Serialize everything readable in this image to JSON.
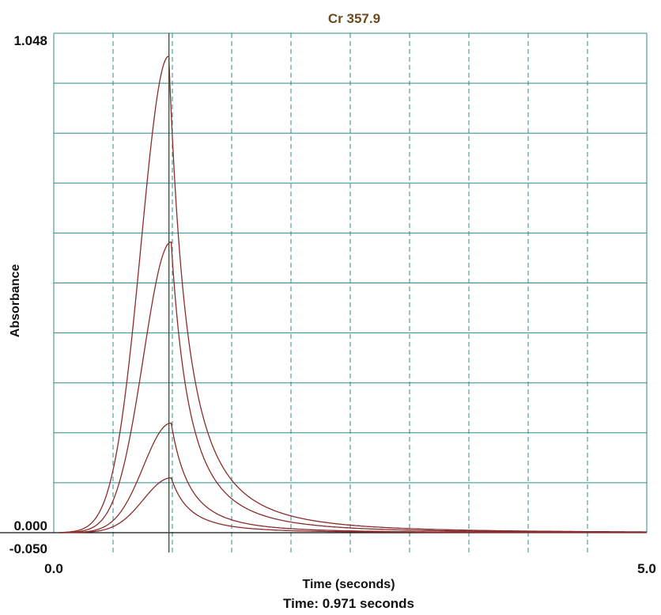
{
  "chart_data": {
    "type": "line",
    "title": "Cr 357.9",
    "xlabel": "Time (seconds)",
    "ylabel": "Absorbance",
    "xlim": [
      0.0,
      5.0
    ],
    "ylim": [
      -0.05,
      1.048
    ],
    "x_tick_labels": [
      "0.0",
      "5.0"
    ],
    "y_tick_labels": [
      "1.048",
      "0.000",
      "-0.050"
    ],
    "cursor_x": 0.971,
    "readout": "Time: 0.971 seconds",
    "grid": true,
    "series": [
      {
        "peak_time": 0.97,
        "peak_value": 1.0
      },
      {
        "peak_time": 0.99,
        "peak_value": 0.61
      },
      {
        "peak_time": 0.99,
        "peak_value": 0.23
      },
      {
        "peak_time": 0.99,
        "peak_value": 0.115
      }
    ],
    "colors": {
      "curve": "#8b2c2c",
      "grid_h": "#2e8b8b",
      "grid_v": "#2e8b8b",
      "cursor": "#1f5f1f",
      "title": "#6b4a1e",
      "baseline": "#111111"
    }
  }
}
